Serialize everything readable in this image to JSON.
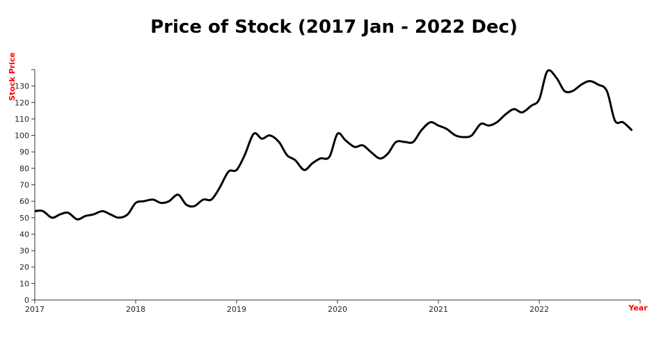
{
  "chart_data": {
    "type": "line",
    "title": "Price of Stock (2017 Jan - 2022 Dec)",
    "xlabel": "Year",
    "ylabel": "Stock Price",
    "axis_title_color": "#ff0000",
    "line_color": "#000000",
    "grid": false,
    "legend": "none",
    "xlim": [
      2017.0,
      2023.0
    ],
    "ylim": [
      0,
      140
    ],
    "x_ticks": [
      2017,
      2018,
      2019,
      2020,
      2021,
      2022
    ],
    "y_ticks": [
      0,
      10,
      20,
      30,
      40,
      50,
      60,
      70,
      80,
      90,
      100,
      110,
      120,
      130
    ],
    "series": [
      {
        "values": [
          {
            "x": 2017.0,
            "y": 54
          },
          {
            "x": 2017.08,
            "y": 54
          },
          {
            "x": 2017.17,
            "y": 50
          },
          {
            "x": 2017.25,
            "y": 52
          },
          {
            "x": 2017.33,
            "y": 53
          },
          {
            "x": 2017.42,
            "y": 49
          },
          {
            "x": 2017.5,
            "y": 51
          },
          {
            "x": 2017.58,
            "y": 52
          },
          {
            "x": 2017.67,
            "y": 54
          },
          {
            "x": 2017.75,
            "y": 52
          },
          {
            "x": 2017.83,
            "y": 50
          },
          {
            "x": 2017.92,
            "y": 52
          },
          {
            "x": 2018.0,
            "y": 59
          },
          {
            "x": 2018.08,
            "y": 60
          },
          {
            "x": 2018.17,
            "y": 61
          },
          {
            "x": 2018.25,
            "y": 59
          },
          {
            "x": 2018.33,
            "y": 60
          },
          {
            "x": 2018.42,
            "y": 64
          },
          {
            "x": 2018.5,
            "y": 58
          },
          {
            "x": 2018.58,
            "y": 57
          },
          {
            "x": 2018.67,
            "y": 61
          },
          {
            "x": 2018.75,
            "y": 61
          },
          {
            "x": 2018.83,
            "y": 68
          },
          {
            "x": 2018.92,
            "y": 78
          },
          {
            "x": 2019.0,
            "y": 79
          },
          {
            "x": 2019.08,
            "y": 88
          },
          {
            "x": 2019.17,
            "y": 101
          },
          {
            "x": 2019.25,
            "y": 98
          },
          {
            "x": 2019.33,
            "y": 100
          },
          {
            "x": 2019.42,
            "y": 96
          },
          {
            "x": 2019.5,
            "y": 88
          },
          {
            "x": 2019.58,
            "y": 85
          },
          {
            "x": 2019.67,
            "y": 79
          },
          {
            "x": 2019.75,
            "y": 83
          },
          {
            "x": 2019.83,
            "y": 86
          },
          {
            "x": 2019.92,
            "y": 87
          },
          {
            "x": 2020.0,
            "y": 101
          },
          {
            "x": 2020.08,
            "y": 97
          },
          {
            "x": 2020.17,
            "y": 93
          },
          {
            "x": 2020.25,
            "y": 94
          },
          {
            "x": 2020.33,
            "y": 90
          },
          {
            "x": 2020.42,
            "y": 86
          },
          {
            "x": 2020.5,
            "y": 89
          },
          {
            "x": 2020.58,
            "y": 96
          },
          {
            "x": 2020.67,
            "y": 96
          },
          {
            "x": 2020.75,
            "y": 96
          },
          {
            "x": 2020.83,
            "y": 103
          },
          {
            "x": 2020.92,
            "y": 108
          },
          {
            "x": 2021.0,
            "y": 106
          },
          {
            "x": 2021.08,
            "y": 104
          },
          {
            "x": 2021.17,
            "y": 100
          },
          {
            "x": 2021.25,
            "y": 99
          },
          {
            "x": 2021.33,
            "y": 100
          },
          {
            "x": 2021.42,
            "y": 107
          },
          {
            "x": 2021.5,
            "y": 106
          },
          {
            "x": 2021.58,
            "y": 108
          },
          {
            "x": 2021.67,
            "y": 113
          },
          {
            "x": 2021.75,
            "y": 116
          },
          {
            "x": 2021.83,
            "y": 114
          },
          {
            "x": 2021.92,
            "y": 118
          },
          {
            "x": 2022.0,
            "y": 122
          },
          {
            "x": 2022.08,
            "y": 139
          },
          {
            "x": 2022.17,
            "y": 135
          },
          {
            "x": 2022.25,
            "y": 127
          },
          {
            "x": 2022.33,
            "y": 127
          },
          {
            "x": 2022.42,
            "y": 131
          },
          {
            "x": 2022.5,
            "y": 133
          },
          {
            "x": 2022.58,
            "y": 131
          },
          {
            "x": 2022.67,
            "y": 127
          },
          {
            "x": 2022.75,
            "y": 109
          },
          {
            "x": 2022.83,
            "y": 108
          },
          {
            "x": 2022.92,
            "y": 103
          }
        ]
      }
    ]
  }
}
